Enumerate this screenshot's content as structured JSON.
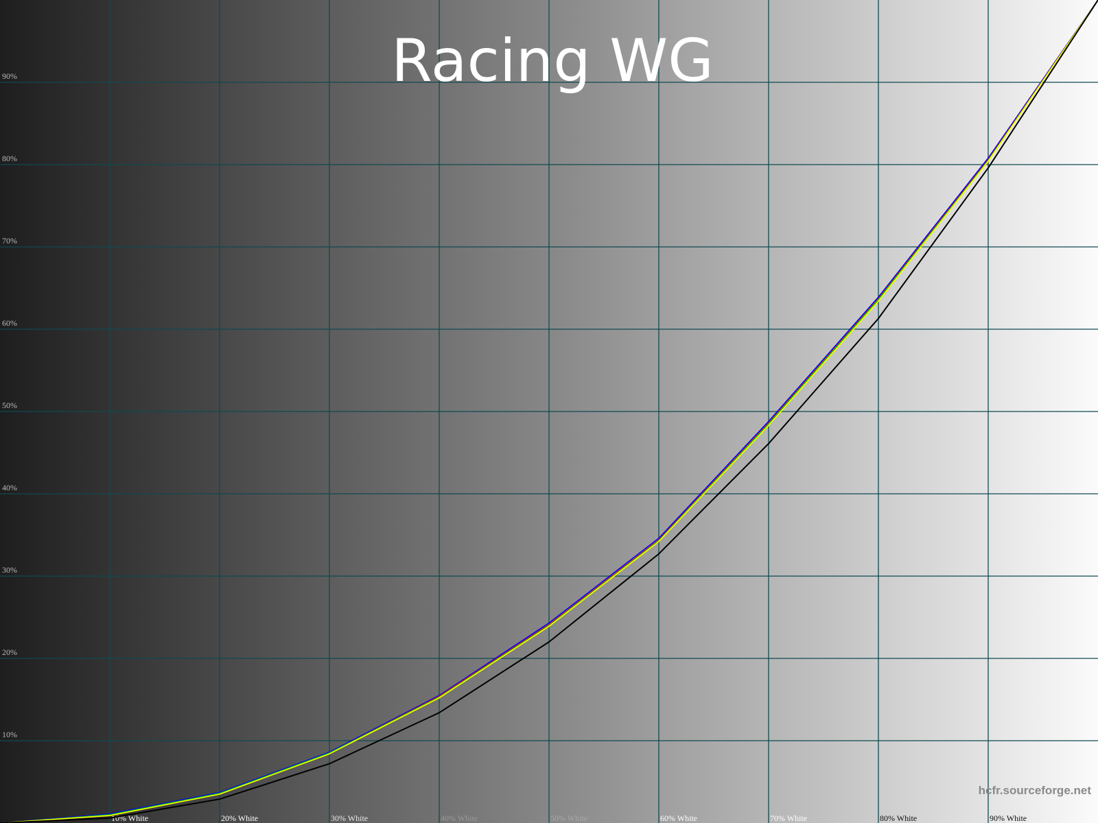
{
  "chart_data": {
    "type": "line",
    "title": "Racing WG",
    "watermark": "hcfr.sourceforge.net",
    "x": [
      0,
      10,
      20,
      30,
      40,
      50,
      60,
      70,
      80,
      90,
      100
    ],
    "xlim": [
      0,
      100
    ],
    "ylim": [
      0,
      100
    ],
    "x_tick_labels": [
      "10% White",
      "20% White",
      "30% White",
      "40% White",
      "50% White",
      "60% White",
      "70% White",
      "80% White",
      "90% White"
    ],
    "y_tick_labels": [
      "10%",
      "20%",
      "30%",
      "40%",
      "50%",
      "60%",
      "70%",
      "80%",
      "90%"
    ],
    "grid": true,
    "background": "grayscale gradient dark to light",
    "grid_color": "#0e4a52",
    "series": [
      {
        "color": "#0000ff",
        "values": [
          0,
          1.1,
          3.7,
          8.6,
          15.5,
          24.3,
          34.6,
          48.8,
          63.9,
          80.8,
          100
        ]
      },
      {
        "color": "#ff0000",
        "values": [
          0,
          1.0,
          3.6,
          8.5,
          15.4,
          24.1,
          34.4,
          48.6,
          63.7,
          80.6,
          100
        ]
      },
      {
        "color": "#00c000",
        "values": [
          0,
          1.0,
          3.6,
          8.5,
          15.3,
          24.0,
          34.3,
          48.5,
          63.6,
          80.5,
          100
        ]
      },
      {
        "color": "#ffff00",
        "values": [
          0,
          0.9,
          3.5,
          8.4,
          15.2,
          23.9,
          34.2,
          48.3,
          63.4,
          80.4,
          100
        ]
      },
      {
        "color": "#000000",
        "values": [
          0,
          0.6,
          2.9,
          7.2,
          13.4,
          22.0,
          32.7,
          46.1,
          61.3,
          79.6,
          100
        ]
      }
    ]
  }
}
